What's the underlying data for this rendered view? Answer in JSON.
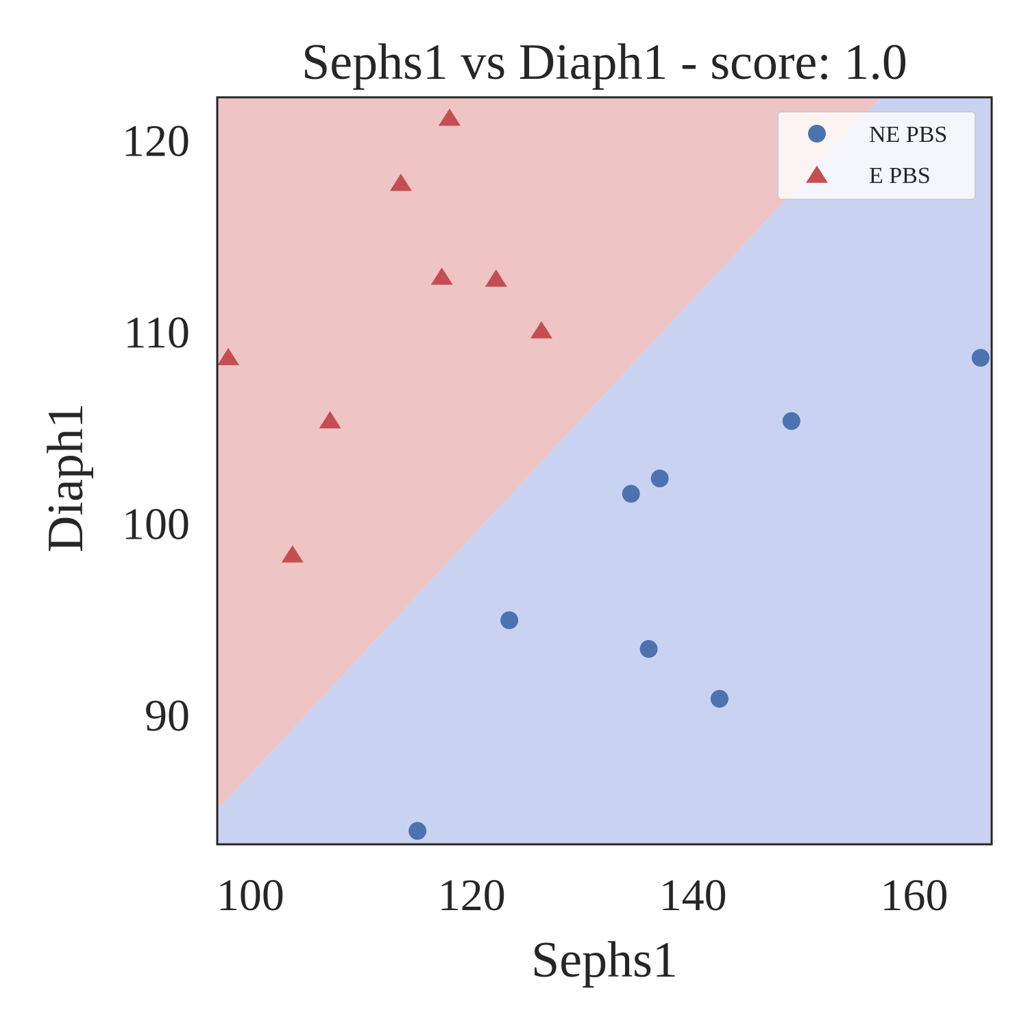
{
  "chart_data": {
    "type": "scatter",
    "title": "Sephs1 vs Diaph1 - score: 1.0",
    "xlabel": "Sephs1",
    "ylabel": "Diaph1",
    "xlim": [
      97,
      167
    ],
    "ylim": [
      83.2,
      122.2
    ],
    "xticks": [
      100,
      120,
      140,
      160
    ],
    "yticks": [
      90,
      100,
      110,
      120
    ],
    "grid": false,
    "legend_position": "upper right",
    "decision_boundary": {
      "points": [
        [
          97,
          85.0
        ],
        [
          157,
          122.2
        ]
      ],
      "region_colors": {
        "above": "#eec4c4",
        "below": "#c9d2f1"
      }
    },
    "series": [
      {
        "name": "NE PBS",
        "marker": "circle",
        "color": "#4c72b0",
        "points": [
          {
            "x": 115.1,
            "y": 83.9
          },
          {
            "x": 123.4,
            "y": 94.9
          },
          {
            "x": 134.4,
            "y": 101.5
          },
          {
            "x": 136.0,
            "y": 93.4
          },
          {
            "x": 137.0,
            "y": 102.3
          },
          {
            "x": 142.4,
            "y": 90.8
          },
          {
            "x": 148.9,
            "y": 105.3
          },
          {
            "x": 166.0,
            "y": 108.6
          }
        ]
      },
      {
        "name": "E PBS",
        "marker": "triangle",
        "color": "#c44e52",
        "points": [
          {
            "x": 98.0,
            "y": 108.6
          },
          {
            "x": 103.8,
            "y": 98.3
          },
          {
            "x": 107.2,
            "y": 105.3
          },
          {
            "x": 113.6,
            "y": 117.7
          },
          {
            "x": 117.3,
            "y": 112.8
          },
          {
            "x": 118.0,
            "y": 121.1
          },
          {
            "x": 122.2,
            "y": 112.7
          },
          {
            "x": 126.3,
            "y": 110.0
          }
        ]
      }
    ]
  }
}
